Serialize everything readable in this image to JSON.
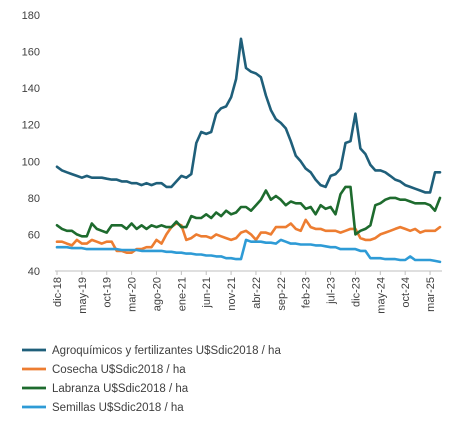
{
  "chart_data": {
    "type": "line",
    "title": "",
    "xlabel": "",
    "ylabel": "",
    "ylim": [
      40,
      180
    ],
    "yticks": [
      40,
      60,
      80,
      100,
      120,
      140,
      160,
      180
    ],
    "grid": false,
    "legend_position": "bottom",
    "x_start": "2018-12",
    "x_tick_labels": [
      "dic-18",
      "may-19",
      "oct-19",
      "mar-20",
      "ago-20",
      "ene-21",
      "jun-21",
      "nov-21",
      "abr-22",
      "sep-22",
      "feb-23",
      "jul-23",
      "dic-23",
      "may-24",
      "oct-24",
      "mar-25"
    ],
    "series": [
      {
        "name": "Agroquímicos y fertilizantes U$Sdic2018 / ha",
        "color": "#1f5f7a",
        "values": [
          97,
          95,
          94,
          93,
          92,
          91,
          92,
          91,
          91,
          91,
          90.5,
          90,
          90,
          89,
          89,
          88,
          88,
          87,
          88,
          87,
          88,
          88,
          86,
          86,
          89,
          92,
          91,
          93,
          110,
          116,
          115,
          116,
          126,
          129,
          130,
          135,
          145,
          167,
          151,
          149,
          148,
          146,
          136,
          128,
          123,
          121,
          118,
          111,
          103,
          100,
          96,
          94,
          90,
          87,
          86,
          92,
          93,
          96,
          110,
          111,
          126,
          107,
          104,
          98,
          95,
          95,
          94,
          92,
          90,
          89,
          87,
          86,
          85,
          84,
          83,
          83,
          94,
          94
        ]
      },
      {
        "name": "Cosecha U$Sdic2018 / ha",
        "color": "#ed7d31",
        "values": [
          56,
          56,
          55,
          54,
          57,
          55,
          55,
          57,
          56,
          55,
          56,
          56,
          51,
          51,
          50,
          50,
          52,
          52,
          53,
          53,
          57,
          55,
          60,
          64,
          66,
          65,
          57,
          58,
          60,
          59,
          59,
          58,
          60,
          59,
          58,
          57,
          58,
          61,
          62,
          60,
          57,
          61,
          61,
          60,
          64,
          64,
          64,
          66,
          63,
          62,
          68,
          64,
          63,
          63,
          62,
          62,
          62,
          61,
          62,
          63,
          63,
          58,
          57,
          57,
          58,
          60,
          61,
          62,
          63,
          64,
          63,
          62,
          63,
          61,
          62,
          62,
          62,
          64
        ]
      },
      {
        "name": "Labranza U$Sdic2018 / ha",
        "color": "#1e6b2e",
        "values": [
          65,
          63,
          62,
          62,
          60,
          59,
          59,
          66,
          63,
          62,
          61,
          65,
          65,
          65,
          63,
          66,
          63,
          65,
          63,
          65,
          64,
          65,
          64,
          64,
          67,
          64,
          64,
          70,
          69,
          69,
          71,
          69,
          72,
          70,
          73,
          71,
          72,
          75,
          75,
          73,
          76,
          79,
          84,
          79,
          81,
          79,
          76,
          78,
          77,
          77,
          74,
          75,
          71,
          76,
          74,
          75,
          71,
          82,
          86,
          86,
          60,
          62,
          63,
          65,
          76,
          77,
          79,
          80,
          80,
          79,
          79,
          78,
          77,
          77,
          77,
          76,
          73,
          80
        ]
      },
      {
        "name": "Semillas U$Sdic2018 / ha",
        "color": "#2e9bd6",
        "values": [
          53,
          53,
          53,
          52.5,
          52.5,
          52.5,
          52,
          52,
          52,
          52,
          52,
          52,
          52,
          51.5,
          51.5,
          51.5,
          51.5,
          51,
          51,
          51,
          51,
          51,
          50.5,
          50.5,
          50,
          50,
          49.5,
          49.5,
          49,
          49,
          48.5,
          48.5,
          48,
          48,
          47,
          47,
          46.5,
          46.5,
          57,
          56,
          56,
          56,
          55.5,
          55.5,
          55,
          57,
          56,
          55,
          55,
          54.5,
          54.5,
          54.5,
          54,
          54,
          53.5,
          53,
          53,
          52,
          52,
          52,
          52,
          51,
          51,
          47,
          47,
          47,
          46.5,
          46.5,
          46.5,
          46,
          46,
          48,
          46,
          46,
          46,
          46,
          45.5,
          45
        ]
      }
    ]
  }
}
